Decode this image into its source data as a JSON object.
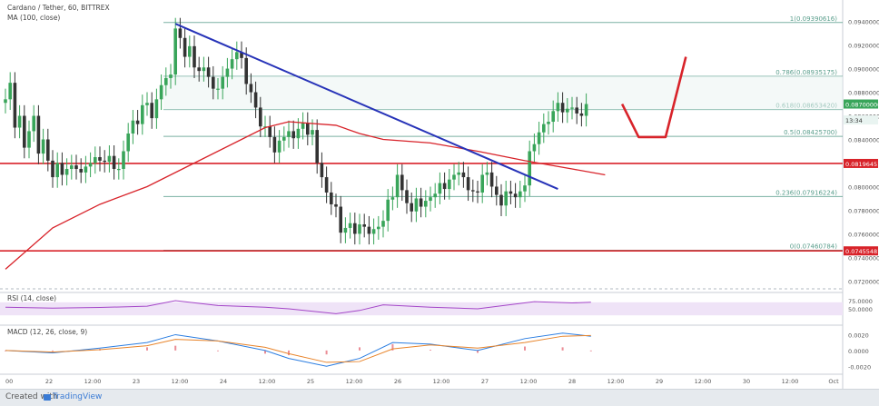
{
  "header": {
    "symbol": "Cardano / Tether, 60, BITTREX",
    "ma_label": "MA (100, close)"
  },
  "colors": {
    "up": "#39a55a",
    "down": "#333333",
    "fib": "#5a9e8c",
    "trend": "#2733b8",
    "hline": "#d8232a",
    "ma": "#d8232a",
    "rsi": "#a446c8",
    "macd": "#2a7de1",
    "signal": "#e8842a",
    "hist": "#e35d6a"
  },
  "chart_data": [
    {
      "type": "candlestick",
      "title": "Cardano / Tether, 60, BITTREX",
      "ylim": [
        0.0718,
        0.0952
      ],
      "x_ticks": [
        "00",
        "22",
        "12:00",
        "23",
        "12:00",
        "24",
        "12:00",
        "25",
        "12:00",
        "26",
        "12:00",
        "27",
        "12:00",
        "28",
        "12:00",
        "29",
        "12:00",
        "30",
        "12:00",
        "Oct"
      ],
      "y_ticks": [
        "0.09400000",
        "0.09200000",
        "0.09000000",
        "0.08800000",
        "0.08600000",
        "0.08400000",
        "0.08000000",
        "0.07800000",
        "0.07600000",
        "0.07400000",
        "0.07200000"
      ],
      "price_labels": [
        {
          "text": "0.08700000",
          "value": 0.087,
          "style": "last"
        },
        {
          "text": "13:34",
          "value": 0.08565,
          "style": "timer"
        },
        {
          "text": "0.08196451",
          "value": 0.08196451,
          "style": "red"
        },
        {
          "text": "0.07455481",
          "value": 0.07455481,
          "style": "red"
        }
      ],
      "fibonacci": [
        {
          "ratio": "1",
          "value": 0.09390616,
          "label": "1(0.09390616)"
        },
        {
          "ratio": "0.786",
          "value": 0.08935175,
          "label": "0.786(0.08935175)"
        },
        {
          "ratio": "0.618",
          "value": 0.0865342,
          "label": "0.618(0.08653420)"
        },
        {
          "ratio": "0.5",
          "value": 0.084257,
          "label": "0.5(0.08425700)"
        },
        {
          "ratio": "0.236",
          "value": 0.07916224,
          "label": "0.236(0.07916224)"
        },
        {
          "ratio": "0",
          "value": 0.07460784,
          "label": "0(0.07460784)"
        }
      ],
      "horizontal_lines": [
        0.08196451,
        0.07455481
      ],
      "trendline": {
        "x": [
          36.0,
          117.0
        ],
        "y": [
          0.0938,
          0.0798
        ]
      },
      "arrow": {
        "x": [
          130.6,
          134.1,
          139.8,
          144.1
        ],
        "y": [
          0.087,
          0.0842,
          0.0842,
          0.091
        ]
      },
      "ma_100": {
        "x": [
          0,
          10,
          20,
          30,
          40,
          50,
          55,
          60,
          70,
          75,
          80,
          90,
          100,
          110,
          120,
          127
        ],
        "y": [
          0.073,
          0.0765,
          0.0785,
          0.08,
          0.082,
          0.084,
          0.085,
          0.0855,
          0.0852,
          0.0845,
          0.084,
          0.0837,
          0.083,
          0.0822,
          0.0815,
          0.081
        ]
      },
      "series": [
        {
          "close": [
            0.0874,
            0.0888,
            0.085,
            0.086,
            0.0833,
            0.0847,
            0.086,
            0.0828,
            0.084,
            0.0822,
            0.0808,
            0.082,
            0.081,
            0.0815,
            0.0818,
            0.0815,
            0.0812,
            0.0817,
            0.082,
            0.0825,
            0.0822,
            0.0821,
            0.0826,
            0.0815,
            0.0815,
            0.083,
            0.0845,
            0.0856,
            0.0853,
            0.0869,
            0.0871,
            0.0858,
            0.0874,
            0.0886,
            0.0892,
            0.0895,
            0.0934,
            0.0926,
            0.091,
            0.0919,
            0.0901,
            0.0898,
            0.0901,
            0.0893,
            0.0883,
            0.0883,
            0.0893,
            0.09,
            0.0908,
            0.0914,
            0.0909,
            0.0887,
            0.088,
            0.0867,
            0.0851,
            0.0851,
            0.0842,
            0.0829,
            0.0839,
            0.0842,
            0.0847,
            0.0841,
            0.0849,
            0.0854,
            0.0844,
            0.0848,
            0.082,
            0.0808,
            0.0795,
            0.0785,
            0.0783,
            0.0761,
            0.0765,
            0.0769,
            0.076,
            0.0768,
            0.0766,
            0.076,
            0.0764,
            0.0766,
            0.0771,
            0.0789,
            0.0791,
            0.081,
            0.0797,
            0.0786,
            0.0779,
            0.079,
            0.0783,
            0.0788,
            0.0791,
            0.0794,
            0.0803,
            0.0798,
            0.0806,
            0.081,
            0.0812,
            0.0808,
            0.0797,
            0.0796,
            0.0795,
            0.081,
            0.0812,
            0.08,
            0.0793,
            0.0784,
            0.0796,
            0.0794,
            0.0791,
            0.0796,
            0.0801,
            0.083,
            0.0836,
            0.0846,
            0.0853,
            0.0855,
            0.0864,
            0.0871,
            0.0863,
            0.0866,
            0.0867,
            0.0862,
            0.086,
            0.087
          ]
        },
        {
          "open": [
            0.0871,
            0.0874,
            0.0888,
            0.085,
            0.086,
            0.0833,
            0.0847,
            0.086,
            0.0828,
            0.084,
            0.0822,
            0.0808,
            0.082,
            0.081,
            0.0815,
            0.0818,
            0.0815,
            0.0812,
            0.0817,
            0.082,
            0.0825,
            0.0822,
            0.0821,
            0.0826,
            0.0815,
            0.0815,
            0.083,
            0.0845,
            0.0856,
            0.0853,
            0.0869,
            0.0871,
            0.0858,
            0.0874,
            0.0886,
            0.0892,
            0.0895,
            0.0934,
            0.0926,
            0.091,
            0.0919,
            0.0901,
            0.0898,
            0.0901,
            0.0893,
            0.0883,
            0.0883,
            0.0893,
            0.09,
            0.0908,
            0.0914,
            0.0909,
            0.0887,
            0.088,
            0.0867,
            0.0851,
            0.0851,
            0.0842,
            0.0829,
            0.0839,
            0.0842,
            0.0847,
            0.0841,
            0.0849,
            0.0854,
            0.0844,
            0.0848,
            0.082,
            0.0808,
            0.0795,
            0.0785,
            0.0783,
            0.0761,
            0.0765,
            0.0769,
            0.076,
            0.0768,
            0.0766,
            0.076,
            0.0764,
            0.0766,
            0.0771,
            0.0789,
            0.0791,
            0.081,
            0.0797,
            0.0786,
            0.0779,
            0.079,
            0.0783,
            0.0788,
            0.0791,
            0.0794,
            0.0803,
            0.0798,
            0.0806,
            0.081,
            0.0812,
            0.0808,
            0.0797,
            0.0796,
            0.0795,
            0.081,
            0.0812,
            0.08,
            0.0793,
            0.0784,
            0.0796,
            0.0794,
            0.0791,
            0.0796,
            0.0801,
            0.083,
            0.0836,
            0.0846,
            0.0853,
            0.0855,
            0.0864,
            0.0871,
            0.0863,
            0.0866,
            0.0867,
            0.0862,
            0.086
          ]
        }
      ]
    },
    {
      "type": "line",
      "title": "RSI (14, close)",
      "ylim": [
        0,
        100
      ],
      "y_ticks": [
        "75.0000",
        "50.0000"
      ],
      "band": [
        30,
        70
      ],
      "x": [
        0,
        10,
        20,
        30,
        36,
        45,
        55,
        60,
        70,
        75,
        80,
        90,
        100,
        112,
        120,
        124
      ],
      "y": [
        55,
        52,
        54,
        58,
        75,
        60,
        55,
        50,
        35,
        45,
        62,
        55,
        50,
        72,
        68,
        70
      ]
    },
    {
      "type": "line",
      "title": "MACD (12, 26, close, 9)",
      "ylim": [
        -0.003,
        0.0032
      ],
      "y_ticks": [
        "0.0020",
        "0.0000",
        "-0.0020"
      ],
      "x": [
        0,
        10,
        20,
        30,
        36,
        45,
        55,
        60,
        68,
        75,
        82,
        90,
        100,
        110,
        118,
        124
      ],
      "macd": [
        0.0,
        -0.0003,
        0.0003,
        0.001,
        0.002,
        0.0012,
        0.0,
        -0.001,
        -0.002,
        -0.001,
        0.001,
        0.0008,
        0.0,
        0.0015,
        0.0022,
        0.0018
      ],
      "signal": [
        0.0,
        -0.0002,
        0.0001,
        0.0006,
        0.0014,
        0.0012,
        0.0004,
        -0.0004,
        -0.0015,
        -0.0014,
        0.0002,
        0.0007,
        0.0003,
        0.001,
        0.0018,
        0.0019
      ]
    }
  ],
  "footer": {
    "created_with": "Created with",
    "brand": "TradingView"
  }
}
